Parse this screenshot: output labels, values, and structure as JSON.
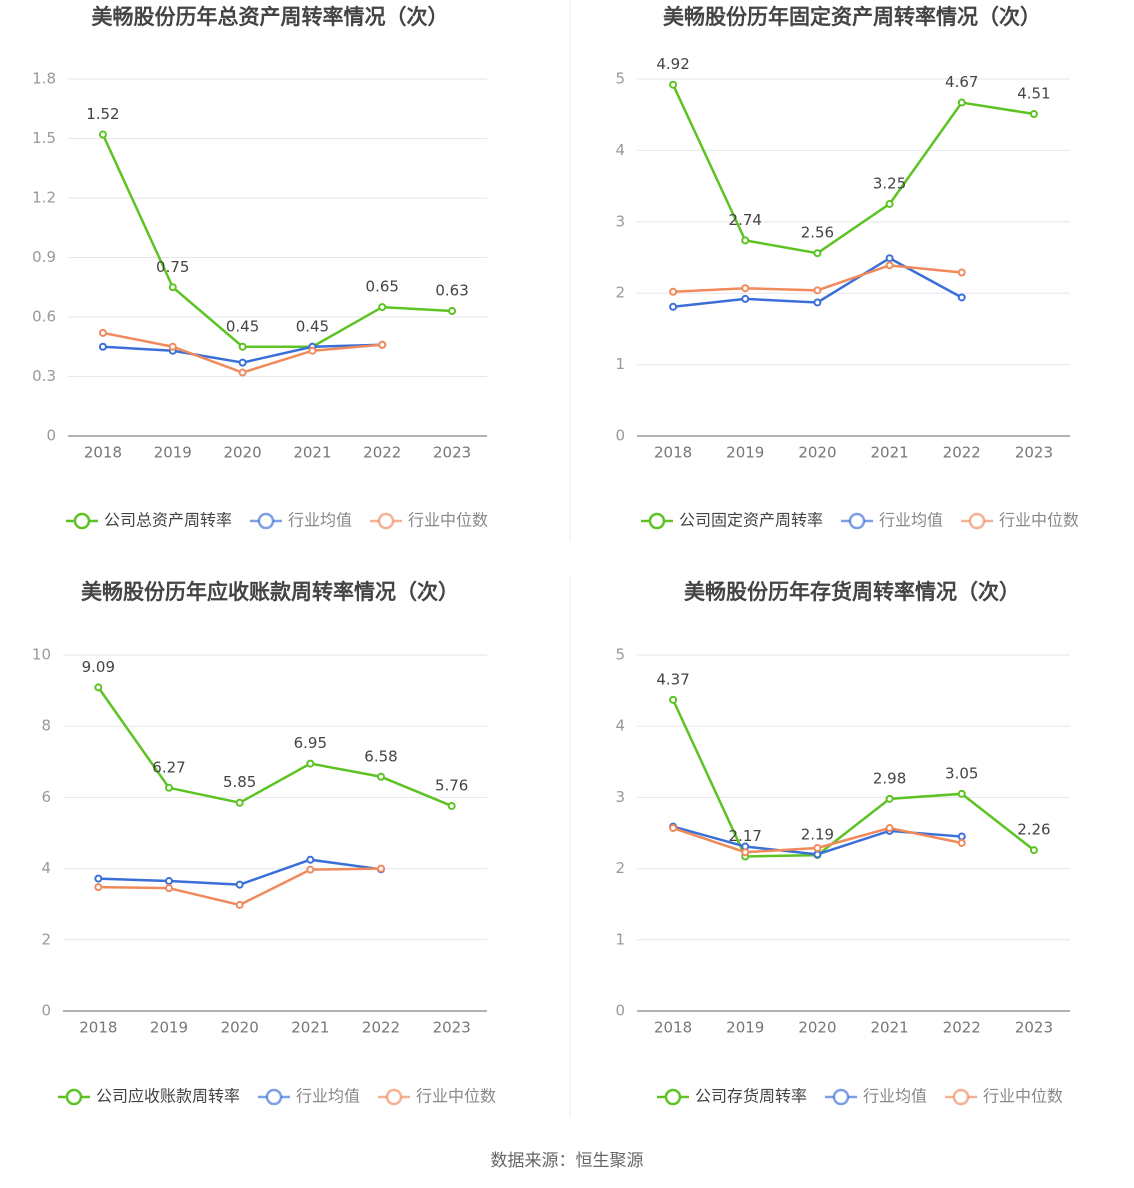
{
  "chart_data": [
    {
      "type": "line",
      "title": "美畅股份历年总资产周转率情况（次）",
      "categories": [
        "2018",
        "2019",
        "2020",
        "2021",
        "2022",
        "2023"
      ],
      "series": [
        {
          "name": "公司总资产周转率",
          "color": "#5cc323",
          "values": [
            1.52,
            0.75,
            0.45,
            0.45,
            0.65,
            0.63
          ]
        },
        {
          "name": "行业均值",
          "color": "#3b6fd8",
          "values": [
            0.45,
            0.43,
            0.37,
            0.45,
            0.46,
            null
          ]
        },
        {
          "name": "行业中位数",
          "color": "#f08a5d",
          "values": [
            0.52,
            0.45,
            0.32,
            0.43,
            0.46,
            null
          ]
        }
      ],
      "ylim": [
        0,
        1.8
      ],
      "yticks": [
        0,
        0.3,
        0.6,
        0.9,
        1.2,
        1.5,
        1.8
      ],
      "grid": true
    },
    {
      "type": "line",
      "title": "美畅股份历年固定资产周转率情况（次）",
      "categories": [
        "2018",
        "2019",
        "2020",
        "2021",
        "2022",
        "2023"
      ],
      "series": [
        {
          "name": "公司固定资产周转率",
          "color": "#5cc323",
          "values": [
            4.92,
            2.74,
            2.56,
            3.25,
            4.67,
            4.51
          ]
        },
        {
          "name": "行业均值",
          "color": "#3b6fd8",
          "values": [
            1.81,
            1.92,
            1.87,
            2.49,
            1.94,
            null
          ]
        },
        {
          "name": "行业中位数",
          "color": "#f08a5d",
          "values": [
            2.02,
            2.07,
            2.04,
            2.39,
            2.29,
            null
          ]
        }
      ],
      "ylim": [
        0,
        5
      ],
      "yticks": [
        0,
        1,
        2,
        3,
        4,
        5
      ],
      "grid": true
    },
    {
      "type": "line",
      "title": "美畅股份历年应收账款周转率情况（次）",
      "categories": [
        "2018",
        "2019",
        "2020",
        "2021",
        "2022",
        "2023"
      ],
      "series": [
        {
          "name": "公司应收账款周转率",
          "color": "#5cc323",
          "values": [
            9.09,
            6.27,
            5.85,
            6.95,
            6.58,
            5.76
          ]
        },
        {
          "name": "行业均值",
          "color": "#3b6fd8",
          "values": [
            3.72,
            3.65,
            3.55,
            4.25,
            3.98,
            null
          ]
        },
        {
          "name": "行业中位数",
          "color": "#f08a5d",
          "values": [
            3.48,
            3.45,
            2.98,
            3.97,
            4.0,
            null
          ]
        }
      ],
      "ylim": [
        0,
        10
      ],
      "yticks": [
        0,
        2,
        4,
        6,
        8,
        10
      ],
      "grid": true
    },
    {
      "type": "line",
      "title": "美畅股份历年存货周转率情况（次）",
      "categories": [
        "2018",
        "2019",
        "2020",
        "2021",
        "2022",
        "2023"
      ],
      "series": [
        {
          "name": "公司存货周转率",
          "color": "#5cc323",
          "values": [
            4.37,
            2.17,
            2.19,
            2.98,
            3.05,
            2.26
          ]
        },
        {
          "name": "行业均值",
          "color": "#3b6fd8",
          "values": [
            2.59,
            2.31,
            2.2,
            2.53,
            2.45,
            null
          ]
        },
        {
          "name": "行业中位数",
          "color": "#f08a5d",
          "values": [
            2.57,
            2.23,
            2.29,
            2.57,
            2.36,
            null
          ]
        }
      ],
      "ylim": [
        0,
        5
      ],
      "yticks": [
        0,
        1,
        2,
        3,
        4,
        5
      ],
      "grid": true
    }
  ],
  "source": "数据来源：恒生聚源"
}
